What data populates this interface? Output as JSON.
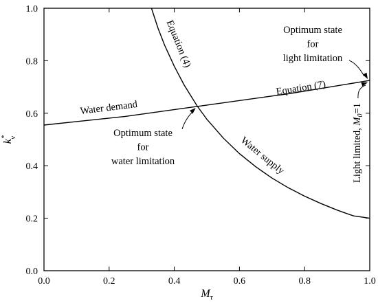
{
  "chart_data": {
    "type": "line",
    "xlabel": "M",
    "xlabel_sub": "τ",
    "ylabel": "k",
    "ylabel_sub": "v",
    "ylabel_sup": "*",
    "xlim": [
      0.0,
      1.0
    ],
    "ylim": [
      0.0,
      1.0
    ],
    "xticks": [
      "0.0",
      "0.2",
      "0.4",
      "0.6",
      "0.8",
      "1.0"
    ],
    "yticks": [
      "0.0",
      "0.2",
      "0.4",
      "0.6",
      "0.8",
      "1.0"
    ],
    "grid": false,
    "series": [
      {
        "x": [
          0.33,
          0.35,
          0.37,
          0.4,
          0.43,
          0.47,
          0.5,
          0.55,
          0.6,
          0.65,
          0.7,
          0.75,
          0.8,
          0.85,
          0.9,
          0.95,
          1.0
        ],
        "y": [
          1.0,
          0.924,
          0.86,
          0.779,
          0.708,
          0.628,
          0.577,
          0.506,
          0.446,
          0.396,
          0.353,
          0.316,
          0.284,
          0.256,
          0.231,
          0.209,
          0.2
        ]
      },
      {
        "x": [
          0.0,
          0.25,
          0.47,
          0.75,
          1.0
        ],
        "y": [
          0.555,
          0.588,
          0.626,
          0.674,
          0.725
        ]
      }
    ],
    "annotations": [
      {
        "text": "Equation (4)",
        "x": 0.405,
        "y": 0.86,
        "rotate": 68
      },
      {
        "text": "Equation (7)",
        "x": 0.79,
        "y": 0.685,
        "rotate": -9
      },
      {
        "text": "Water demand",
        "x": 0.2,
        "y": 0.61,
        "rotate": -7
      },
      {
        "text": "Water supply",
        "x": 0.665,
        "y": 0.43,
        "rotate": 39
      }
    ],
    "optimum_water": {
      "lines": [
        "Optimum state",
        "for",
        "water limitation"
      ]
    },
    "optimum_light": {
      "lines": [
        "Optimum state",
        "for",
        "light limitation"
      ]
    },
    "light_limited": {
      "text": "Light limited, ",
      "var": "M",
      "sub": "0",
      "rest": "=1"
    }
  }
}
